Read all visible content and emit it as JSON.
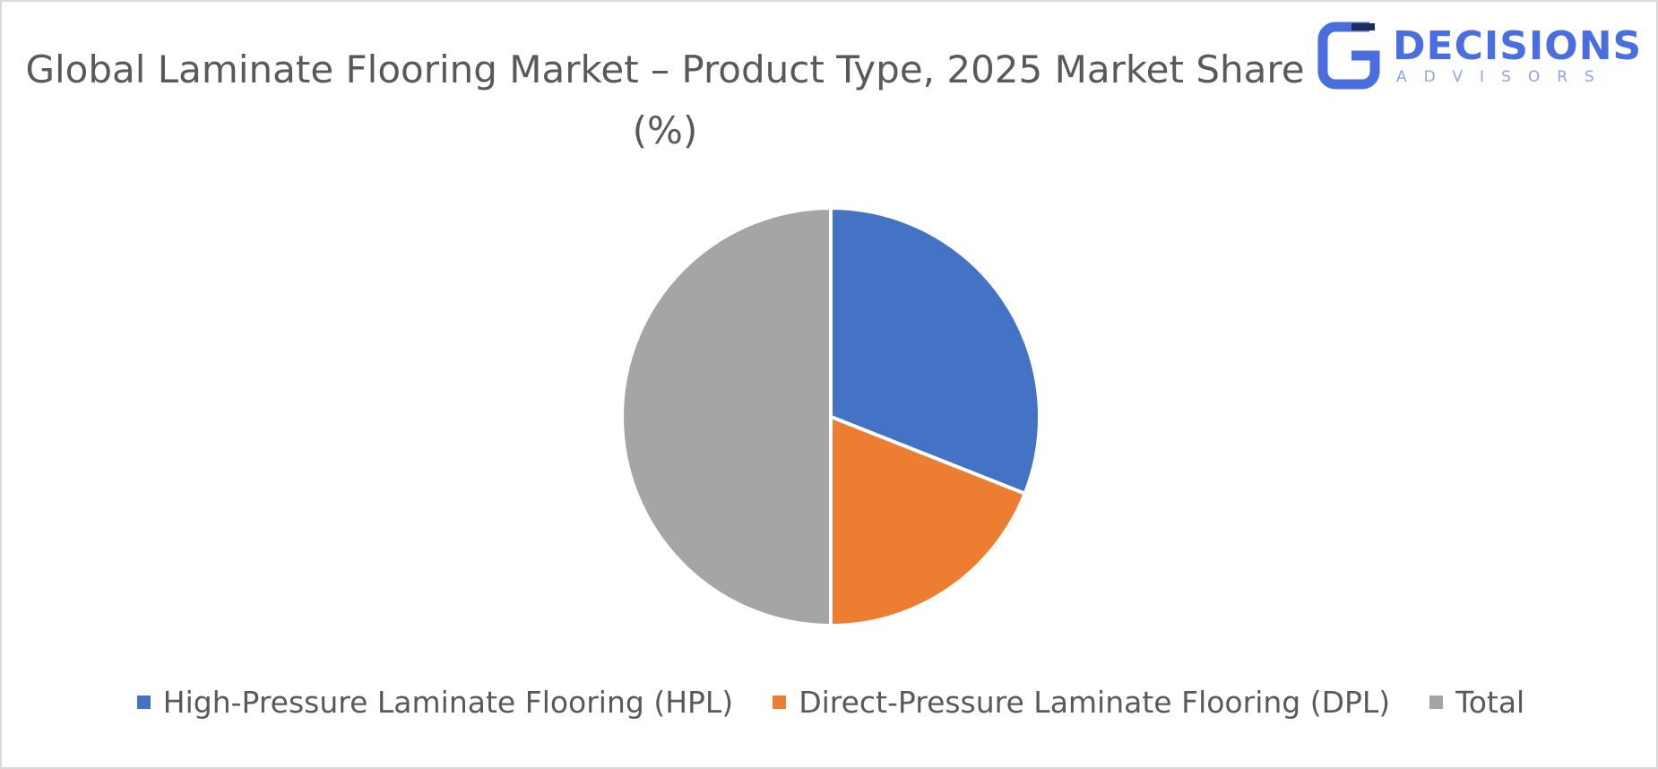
{
  "chart_data": {
    "type": "pie",
    "title": "Global Laminate Flooring Market – Product Type, 2025 Market Share (%)",
    "categories": [
      "High-Pressure Laminate Flooring (HPL)",
      "Direct-Pressure Laminate Flooring (DPL)",
      "Total"
    ],
    "values": [
      31,
      19,
      50
    ],
    "colors": [
      "#4472c4",
      "#ed7d31",
      "#a5a5a5"
    ],
    "legend": "bottom"
  },
  "logo": {
    "name": "DECISIONS",
    "tagline": "ADVISORS"
  }
}
